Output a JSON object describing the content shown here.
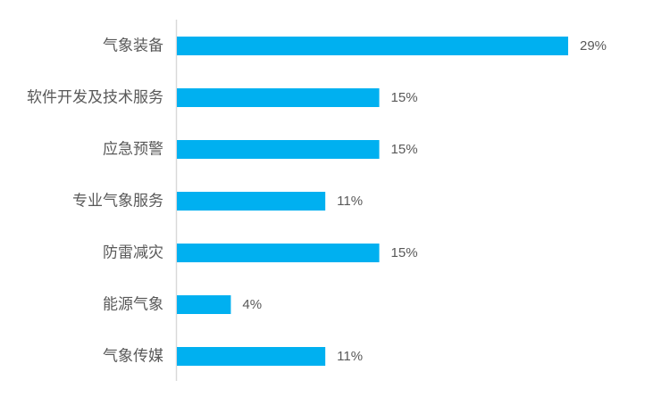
{
  "chart_data": {
    "type": "bar",
    "orientation": "horizontal",
    "categories": [
      "气象装备",
      "软件开发及技术服务",
      "应急预警",
      "专业气象服务",
      "防雷减灾",
      "能源气象",
      "气象传媒"
    ],
    "values": [
      29,
      15,
      15,
      11,
      15,
      4,
      11
    ],
    "value_labels": [
      "29%",
      "15%",
      "15%",
      "11%",
      "15%",
      "4%",
      "11%"
    ],
    "unit": "%",
    "xlim": [
      0,
      29
    ],
    "grid": false,
    "legend": "none",
    "colors": {
      "bar": "#00B0F0",
      "axis": "#D9D9D9",
      "text": "#595959"
    }
  }
}
